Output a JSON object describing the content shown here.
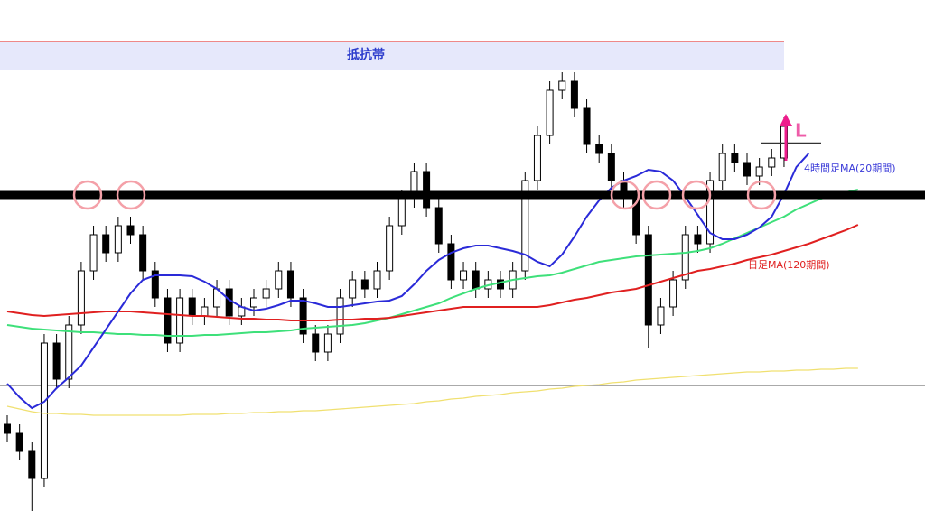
{
  "chart_data": {
    "type": "candlestick",
    "title": "抵抗帯",
    "annotation": "L",
    "ylim": [
      0,
      576
    ],
    "up_color": "#ffffff",
    "down_color": "#000000",
    "open": [
      106,
      96,
      76,
      46,
      196,
      156,
      216,
      276,
      316,
      296,
      326,
      316,
      276,
      246,
      196,
      246,
      226,
      236,
      256,
      226,
      236,
      246,
      256,
      276,
      246,
      206,
      186,
      206,
      246,
      266,
      256,
      276,
      326,
      356,
      386,
      346,
      306,
      266,
      276,
      256,
      266,
      256,
      276,
      376,
      426,
      476,
      486,
      456,
      416,
      406,
      376,
      356,
      316,
      216,
      236,
      266,
      316,
      306,
      376,
      406,
      396,
      381,
      391,
      401,
      null,
      null,
      null,
      null,
      null,
      null
    ],
    "high": [
      116,
      106,
      86,
      206,
      206,
      226,
      286,
      326,
      326,
      336,
      336,
      326,
      286,
      256,
      256,
      256,
      246,
      266,
      266,
      246,
      256,
      266,
      286,
      286,
      256,
      216,
      216,
      256,
      276,
      276,
      286,
      336,
      366,
      396,
      396,
      356,
      316,
      286,
      286,
      276,
      276,
      286,
      386,
      436,
      486,
      496,
      496,
      466,
      426,
      416,
      386,
      366,
      326,
      246,
      276,
      326,
      326,
      386,
      416,
      416,
      406,
      401,
      411,
      446,
      null,
      null,
      null,
      null,
      null,
      null
    ],
    "low": [
      86,
      66,
      10,
      36,
      146,
      146,
      206,
      266,
      286,
      286,
      306,
      266,
      236,
      186,
      186,
      216,
      216,
      226,
      216,
      216,
      226,
      236,
      246,
      236,
      196,
      176,
      176,
      196,
      236,
      246,
      246,
      266,
      316,
      346,
      336,
      296,
      256,
      256,
      246,
      246,
      246,
      246,
      266,
      366,
      416,
      466,
      446,
      406,
      396,
      366,
      346,
      306,
      190,
      206,
      226,
      256,
      296,
      296,
      366,
      386,
      371,
      371,
      381,
      391,
      null,
      null,
      null,
      null,
      null,
      null
    ],
    "close": [
      96,
      76,
      46,
      196,
      156,
      216,
      276,
      316,
      296,
      326,
      316,
      276,
      246,
      196,
      246,
      226,
      236,
      256,
      226,
      236,
      246,
      256,
      276,
      246,
      206,
      186,
      206,
      246,
      266,
      256,
      276,
      326,
      356,
      386,
      346,
      306,
      266,
      276,
      256,
      266,
      256,
      276,
      376,
      426,
      476,
      486,
      456,
      416,
      406,
      376,
      356,
      316,
      216,
      236,
      266,
      316,
      306,
      376,
      406,
      396,
      381,
      391,
      401,
      436,
      null,
      null,
      null,
      null,
      null,
      null
    ],
    "series": [
      {
        "name": "4時間足MA(20期間)",
        "color": "#2a2ad8",
        "values": [
          151,
          136,
          124,
          131,
          146,
          158,
          171,
          191,
          211,
          231,
          251,
          266,
          271,
          271,
          271,
          270,
          264,
          256,
          244,
          236,
          232,
          234,
          238,
          243,
          243,
          240,
          236,
          236,
          238,
          240,
          242,
          243,
          248,
          261,
          276,
          288,
          296,
          301,
          304,
          304,
          301,
          298,
          294,
          286,
          281,
          294,
          314,
          336,
          354,
          368,
          376,
          381,
          388,
          386,
          376,
          358,
          338,
          318,
          311,
          311,
          316,
          324,
          336,
          361,
          391,
          406,
          null,
          null,
          null,
          null
        ]
      },
      {
        "name": "日足MA(120期間)",
        "color": "#e02020",
        "values": [
          231,
          229,
          227,
          226,
          227,
          228,
          229,
          230,
          231,
          231,
          231,
          230,
          229,
          228,
          227,
          226,
          226,
          225,
          224,
          223,
          223,
          222,
          222,
          221,
          221,
          221,
          221,
          222,
          222,
          223,
          223,
          224,
          226,
          228,
          230,
          232,
          234,
          236,
          236,
          236,
          236,
          236,
          236,
          236,
          238,
          241,
          244,
          246,
          249,
          252,
          254,
          256,
          260,
          264,
          268,
          272,
          276,
          278,
          281,
          284,
          288,
          291,
          294,
          298,
          302,
          306,
          311,
          316,
          321,
          327
        ]
      },
      {
        "color": "#3ee07a",
        "values": [
          216,
          214,
          212,
          211,
          210,
          209,
          208,
          208,
          207,
          206,
          206,
          205,
          205,
          204,
          204,
          204,
          205,
          205,
          206,
          207,
          208,
          208,
          209,
          210,
          212,
          213,
          214,
          215,
          216,
          218,
          221,
          224,
          228,
          232,
          236,
          240,
          246,
          251,
          256,
          260,
          263,
          266,
          268,
          270,
          271,
          274,
          278,
          282,
          286,
          288,
          290,
          292,
          293,
          294,
          295,
          296,
          298,
          301,
          306,
          312,
          318,
          324,
          330,
          336,
          344,
          350,
          356,
          360,
          363,
          366
        ]
      },
      {
        "color": "#f0e070",
        "values": [
          126,
          123,
          120,
          118,
          118,
          117,
          117,
          116,
          116,
          116,
          116,
          116,
          116,
          116,
          116,
          117,
          117,
          117,
          118,
          118,
          119,
          119,
          120,
          120,
          121,
          121,
          122,
          123,
          124,
          125,
          126,
          127,
          128,
          129,
          131,
          132,
          134,
          135,
          137,
          138,
          139,
          141,
          142,
          143,
          145,
          146,
          148,
          149,
          150,
          152,
          153,
          155,
          156,
          157,
          158,
          159,
          160,
          161,
          162,
          163,
          164,
          164,
          165,
          165,
          166,
          166,
          167,
          167,
          168,
          168
        ]
      }
    ]
  }
}
